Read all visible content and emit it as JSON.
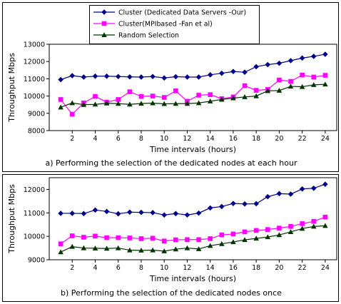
{
  "legend": {
    "placement": "top-center",
    "entries": [
      {
        "name": "Cluster (Dedicated Data Servers -Our)",
        "color": "#00008b",
        "marker": "diamond"
      },
      {
        "name": "Cluster(MPIbased -Fan et al)",
        "color": "#ff00ff",
        "marker": "square"
      },
      {
        "name": "Random Selection",
        "color": "#003300",
        "marker": "triangle"
      }
    ]
  },
  "chart_data": [
    {
      "type": "line",
      "caption": "a) Performing the selection of the dedicated nodes at each hour",
      "xlabel": "Time intervals (hours)",
      "ylabel": "Throughput Mbps",
      "xlim": [
        0,
        25
      ],
      "ylim": [
        8000,
        13000
      ],
      "xticks": [
        2,
        4,
        6,
        8,
        10,
        12,
        14,
        16,
        18,
        20,
        22,
        24
      ],
      "yticks": [
        8000,
        9000,
        10000,
        11000,
        12000,
        13000
      ],
      "grid": false,
      "x": [
        1,
        2,
        3,
        4,
        5,
        6,
        7,
        8,
        9,
        10,
        11,
        12,
        13,
        14,
        15,
        16,
        17,
        18,
        19,
        20,
        21,
        22,
        23,
        24
      ],
      "series": [
        {
          "name": "Cluster (Dedicated Data Servers -Our)",
          "values": [
            10950,
            11180,
            11100,
            11150,
            11150,
            11130,
            11110,
            11100,
            11130,
            11050,
            11120,
            11100,
            11100,
            11230,
            11320,
            11420,
            11380,
            11700,
            11820,
            11900,
            12050,
            12200,
            12300,
            12420
          ]
        },
        {
          "name": "Cluster(MPIbased -Fan et al)",
          "values": [
            9800,
            8950,
            9600,
            9980,
            9650,
            9800,
            10250,
            9980,
            10000,
            9920,
            10300,
            9700,
            10050,
            10080,
            9850,
            9950,
            10600,
            10330,
            10380,
            10930,
            10850,
            11220,
            11100,
            11200
          ]
        },
        {
          "name": "Random Selection",
          "values": [
            9350,
            9600,
            9500,
            9520,
            9580,
            9560,
            9520,
            9570,
            9590,
            9550,
            9560,
            9560,
            9600,
            9700,
            9800,
            9880,
            9950,
            10000,
            10300,
            10320,
            10560,
            10540,
            10650,
            10680
          ]
        }
      ]
    },
    {
      "type": "line",
      "caption": "b) Performing the selection of the dedicated nodes once",
      "xlabel": "Time intervals (hours)",
      "ylabel": "Throughput Mbps",
      "xlim": [
        0,
        25
      ],
      "ylim": [
        9000,
        12500
      ],
      "xticks": [
        2,
        4,
        6,
        8,
        10,
        12,
        14,
        16,
        18,
        20,
        22,
        24
      ],
      "yticks": [
        9000,
        10000,
        11000,
        12000
      ],
      "grid": false,
      "x": [
        1,
        2,
        3,
        4,
        5,
        6,
        7,
        8,
        9,
        10,
        11,
        12,
        13,
        14,
        15,
        16,
        17,
        18,
        19,
        20,
        21,
        22,
        23,
        24
      ],
      "series": [
        {
          "name": "Cluster (Dedicated Data Servers -Our)",
          "values": [
            10980,
            10980,
            10970,
            11120,
            11060,
            10960,
            11030,
            11020,
            11010,
            10910,
            10970,
            10910,
            10990,
            11210,
            11270,
            11400,
            11380,
            11390,
            11690,
            11820,
            11800,
            12020,
            12050,
            12220
          ]
        },
        {
          "name": "Cluster(MPIbased -Fan et al)",
          "values": [
            9680,
            10020,
            9960,
            10010,
            9940,
            9940,
            9930,
            9900,
            9920,
            9800,
            9850,
            9860,
            9860,
            9900,
            10060,
            10100,
            10190,
            10250,
            10290,
            10350,
            10420,
            10540,
            10640,
            10820
          ]
        },
        {
          "name": "Random Selection",
          "values": [
            9330,
            9560,
            9500,
            9490,
            9480,
            9500,
            9410,
            9400,
            9410,
            9370,
            9450,
            9500,
            9460,
            9600,
            9680,
            9760,
            9850,
            9910,
            9970,
            10060,
            10190,
            10330,
            10420,
            10450
          ]
        }
      ]
    }
  ]
}
